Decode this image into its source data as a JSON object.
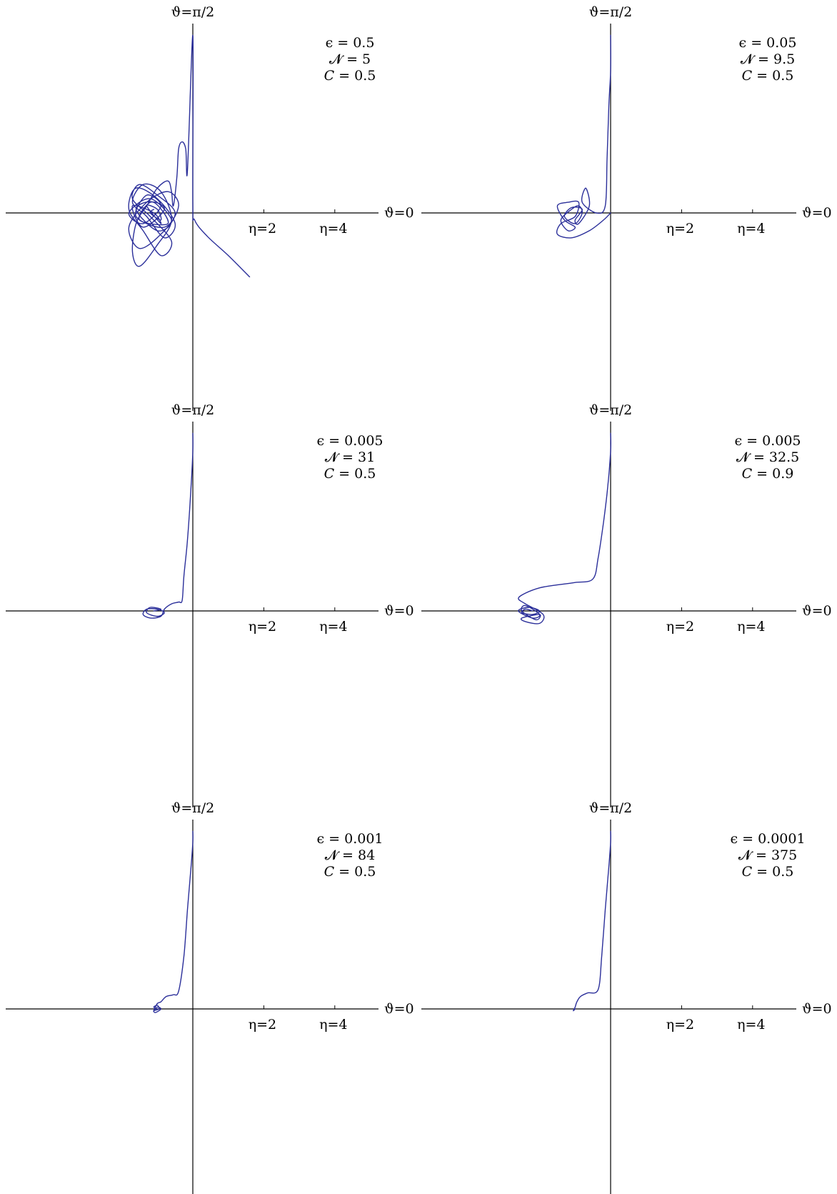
{
  "figure": {
    "curve_color": "#2b2f9a",
    "axis_color": "#000000"
  },
  "chart_data": [
    {
      "type": "line",
      "top_label": "ϑ=π/2",
      "right_label": "ϑ=0",
      "tick_labels": [
        {
          "x": 2,
          "text": "η=2"
        },
        {
          "x": 4,
          "text": "η=4"
        }
      ],
      "params": [
        "ϵ = 0.5",
        "𝓝 = 5",
        "𝐶 = 0.5"
      ],
      "xlim": [
        -5,
        5
      ],
      "ylim": [
        -5.5,
        5
      ],
      "series": [
        {
          "x": [
            1.6,
            1.0,
            0.4,
            0.05,
            0.0,
            0.0,
            -0.15,
            -0.2,
            -0.3,
            -0.4,
            -0.45,
            -0.55,
            -0.6,
            -0.7,
            -1.0,
            -1.3,
            -1.6,
            -1.7,
            -1.5,
            -1.0,
            -0.6,
            -0.9,
            -1.4,
            -1.7,
            -1.3,
            -0.8,
            -0.5,
            -1.0,
            -1.6,
            -1.8,
            -1.4,
            -0.9,
            -0.6,
            -1.2,
            -1.7,
            -1.5,
            -1.0,
            -0.5,
            -0.9,
            -1.5,
            -1.8,
            -1.3,
            -0.7,
            -0.4,
            -0.8,
            -1.6,
            -1.3,
            -0.9,
            -1.4,
            -1.8,
            -1.2,
            -0.6,
            -1.0,
            -1.6,
            -1.1,
            -0.7,
            -1.5,
            -1.2,
            -0.8,
            -1.4,
            -1.7,
            -1.1,
            -0.9,
            -1.3,
            -1.0,
            -0.9,
            -1.2,
            -1.1
          ],
          "y": [
            -1.8,
            -1.2,
            -0.65,
            -0.2,
            0.3,
            5.0,
            1.2,
            1.8,
            2.0,
            1.8,
            1.0,
            0.2,
            0.6,
            0.9,
            0.7,
            0.2,
            -0.3,
            -1.1,
            -1.5,
            -0.9,
            -0.2,
            0.6,
            0.8,
            0.3,
            -0.1,
            -0.7,
            -0.3,
            0.4,
            0.7,
            0.1,
            -0.5,
            -1.2,
            -0.8,
            -0.1,
            0.4,
            0.8,
            0.5,
            0.0,
            -0.6,
            -1.0,
            -0.4,
            0.3,
            0.6,
            0.2,
            -0.4,
            -0.1,
            0.5,
            0.2,
            -0.3,
            0.0,
            0.4,
            -0.2,
            -0.5,
            0.1,
            0.3,
            -0.3,
            -0.2,
            0.3,
            0.1,
            -0.4,
            0.2,
            0.0,
            -0.3,
            0.2,
            0.1,
            -0.2,
            0.0,
            0.1
          ]
        }
      ]
    },
    {
      "type": "line",
      "top_label": "ϑ=π/2",
      "right_label": "ϑ=0",
      "tick_labels": [
        {
          "x": 2,
          "text": "η=2"
        },
        {
          "x": 4,
          "text": "η=4"
        }
      ],
      "params": [
        "ϵ = 0.05",
        "𝓝 = 9.5",
        "𝐶 = 0.5"
      ],
      "xlim": [
        -5,
        5
      ],
      "ylim": [
        -5.5,
        5
      ],
      "series": [
        {
          "x": [
            0.0,
            -0.2,
            -0.6,
            -1.1,
            -1.5,
            -1.4,
            -1.0,
            -0.9,
            -1.2,
            -1.5,
            -1.3,
            -1.0,
            -1.2,
            -1.4,
            -1.1,
            -0.9,
            -0.8,
            -1.0,
            -1.3,
            -1.1,
            -0.8,
            -1.0,
            -0.9,
            -0.6,
            -0.7,
            -0.8,
            -0.4,
            -0.15,
            -0.1,
            -0.05,
            0.0,
            0.0
          ],
          "y": [
            0.0,
            -0.2,
            -0.5,
            -0.7,
            -0.6,
            -0.3,
            -0.1,
            0.3,
            0.3,
            0.2,
            -0.2,
            -0.4,
            -0.5,
            -0.2,
            0.1,
            0.2,
            0.0,
            -0.3,
            -0.1,
            0.15,
            0.1,
            -0.2,
            -0.3,
            0.2,
            0.7,
            0.3,
            0.0,
            0.2,
            1.5,
            3.0,
            4.0,
            5.0
          ]
        }
      ]
    },
    {
      "type": "line",
      "top_label": "ϑ=π/2",
      "right_label": "ϑ=0",
      "tick_labels": [
        {
          "x": 2,
          "text": "η=2"
        },
        {
          "x": 4,
          "text": "η=4"
        }
      ],
      "params": [
        "ϵ = 0.005",
        "𝓝 = 31",
        "𝐶 = 0.5"
      ],
      "xlim": [
        -5,
        5
      ],
      "ylim": [
        -5.5,
        5
      ],
      "series": [
        {
          "x": [
            -1.1,
            -0.9,
            -1.2,
            -1.3,
            -1.0,
            -0.8,
            -1.0,
            -1.3,
            -1.4,
            -1.2,
            -0.9,
            -0.8,
            -0.6,
            -0.4,
            -0.3,
            -0.25,
            -0.15,
            -0.05,
            0.0,
            0.0
          ],
          "y": [
            0.0,
            0.05,
            0.1,
            -0.05,
            -0.15,
            -0.05,
            0.05,
            0.05,
            -0.1,
            -0.2,
            -0.15,
            0.05,
            0.2,
            0.25,
            0.3,
            1.0,
            2.0,
            3.5,
            4.5,
            5.0
          ]
        }
      ]
    },
    {
      "type": "line",
      "top_label": "ϑ=π/2",
      "right_label": "ϑ=0",
      "tick_labels": [
        {
          "x": 2,
          "text": "η=2"
        },
        {
          "x": 4,
          "text": "η=4"
        }
      ],
      "params": [
        "ϵ = 0.005",
        "𝓝 = 32.5",
        "𝐶 = 0.9"
      ],
      "xlim": [
        -5,
        5
      ],
      "ylim": [
        -5.5,
        5
      ],
      "series": [
        {
          "x": [
            -2.2,
            -2.4,
            -2.5,
            -2.2,
            -2.0,
            -2.3,
            -2.6,
            -2.2,
            -2.0,
            -2.4,
            -2.5,
            -2.1,
            -2.0,
            -2.5,
            -2.4,
            -2.0,
            -1.9,
            -2.4,
            -2.6,
            -2.4,
            -2.0,
            -1.6,
            -1.0,
            -0.5,
            -0.35,
            -0.2,
            -0.08,
            0.0,
            0.0
          ],
          "y": [
            0.0,
            0.05,
            -0.05,
            -0.1,
            0.0,
            0.1,
            0.0,
            -0.2,
            -0.1,
            0.15,
            0.0,
            -0.25,
            -0.1,
            -0.2,
            -0.3,
            -0.35,
            -0.1,
            0.2,
            0.35,
            0.5,
            0.65,
            0.72,
            0.8,
            0.9,
            1.5,
            2.5,
            3.5,
            4.5,
            5.0
          ]
        }
      ]
    },
    {
      "type": "line",
      "top_label": "ϑ=π/2",
      "right_label": "ϑ=0",
      "tick_labels": [
        {
          "x": 2,
          "text": "η=2"
        },
        {
          "x": 4,
          "text": "η=4"
        }
      ],
      "params": [
        "ϵ = 0.001",
        "𝓝 = 84",
        "𝐶 = 0.5"
      ],
      "xlim": [
        -5,
        5
      ],
      "ylim": [
        -5.5,
        5
      ],
      "series": [
        {
          "x": [
            -1.0,
            -1.1,
            -1.0,
            -0.95,
            -1.1,
            -1.05,
            -0.9,
            -1.0,
            -1.1,
            -1.0,
            -0.9,
            -0.75,
            -0.55,
            -0.4,
            -0.25,
            -0.15,
            -0.05,
            0.0,
            0.0
          ],
          "y": [
            0.0,
            0.05,
            0.1,
            0.0,
            -0.05,
            -0.1,
            0.0,
            0.05,
            -0.05,
            0.15,
            0.2,
            0.35,
            0.4,
            0.5,
            1.5,
            2.8,
            4.0,
            4.7,
            5.0
          ]
        }
      ]
    },
    {
      "type": "line",
      "top_label": "ϑ=π/2",
      "right_label": "ϑ=0",
      "tick_labels": [
        {
          "x": 2,
          "text": "η=2"
        },
        {
          "x": 4,
          "text": "η=4"
        }
      ],
      "params": [
        "ϵ = 0.0001",
        "𝓝 = 375",
        "𝐶 = 0.5"
      ],
      "xlim": [
        -5,
        5
      ],
      "ylim": [
        -5.5,
        5
      ],
      "series": [
        {
          "x": [
            -1.0,
            -1.05,
            -1.0,
            -0.95,
            -0.85,
            -0.65,
            -0.35,
            -0.25,
            -0.15,
            -0.05,
            0.0,
            0.0
          ],
          "y": [
            0.0,
            -0.05,
            0.05,
            0.2,
            0.35,
            0.45,
            0.55,
            1.5,
            2.8,
            4.0,
            4.7,
            5.0
          ]
        }
      ]
    }
  ]
}
